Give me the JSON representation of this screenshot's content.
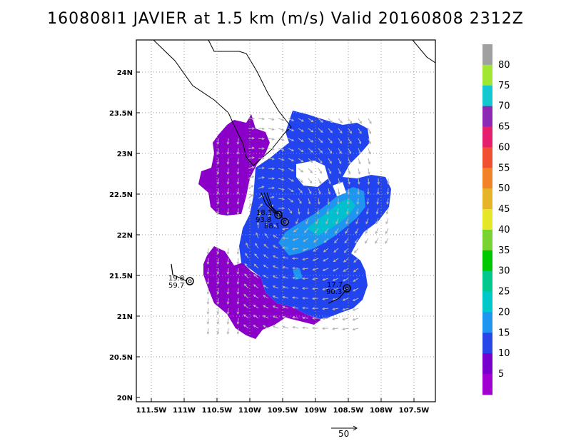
{
  "title": "160808I1 JAVIER at 1.5 km (m/s) Valid 20160808 2312Z",
  "lat_labels": [
    "24N",
    "23.5N",
    "23N",
    "22.5N",
    "22N",
    "21.5N",
    "21N",
    "20.5N",
    "20N"
  ],
  "lon_labels": [
    "111.5W",
    "111W",
    "110.5W",
    "110W",
    "109.5W",
    "109W",
    "108.5W",
    "108W",
    "107.5W"
  ],
  "colorbar": {
    "labels": [
      "5",
      "10",
      "15",
      "20",
      "25",
      "30",
      "35",
      "40",
      "45",
      "50",
      "55",
      "60",
      "65",
      "70",
      "75",
      "80"
    ],
    "colors": [
      "#a000d0",
      "#7700cc",
      "#2846e8",
      "#1e96f0",
      "#00c8c8",
      "#00c88c",
      "#00c800",
      "#78d232",
      "#e6e628",
      "#e6b428",
      "#f08228",
      "#f05032",
      "#e61e6e",
      "#8c28b4",
      "#14c8d2",
      "#a0e632",
      "#a0a0a0"
    ]
  },
  "storm_labels": [
    {
      "id": "center-1",
      "wind": "18.1",
      "press": "93.8",
      "extra": "88.1"
    },
    {
      "id": "center-2",
      "wind": "19.8",
      "press": "59.7"
    },
    {
      "id": "center-3",
      "wind": "17.7",
      "press": "90.3"
    }
  ],
  "reference_vector": "50"
}
